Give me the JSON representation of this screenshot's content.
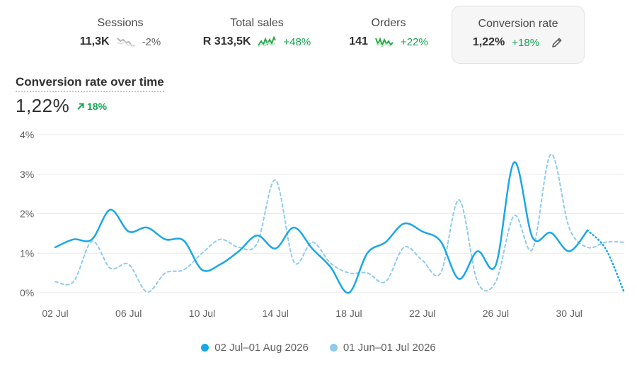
{
  "metrics": [
    {
      "label": "Sessions",
      "value": "11,3K",
      "change": "-2%",
      "trend": "down",
      "spark_color": "#b5b5b5",
      "active": false
    },
    {
      "label": "Total sales",
      "value": "R 313,5K",
      "change": "+48%",
      "trend": "up",
      "spark_color": "#29a847",
      "active": false
    },
    {
      "label": "Orders",
      "value": "141",
      "change": "+22%",
      "trend": "up",
      "spark_color": "#29a847",
      "active": false
    },
    {
      "label": "Conversion rate",
      "value": "1,22%",
      "change": "+18%",
      "trend": "up",
      "spark_color": "#29a847",
      "active": true,
      "icon": "pencil-icon"
    }
  ],
  "chart_header": {
    "title": "Conversion rate over time",
    "value": "1,22%",
    "change": "18%",
    "change_icon": "arrow-up-right-icon"
  },
  "colors": {
    "current": "#1aa7e8",
    "previous": "#8ecbee",
    "positive": "#14a352",
    "grid": "#e8e8e8"
  },
  "chart_data": {
    "type": "line",
    "title": "Conversion rate over time",
    "ylabel": "",
    "xlabel": "",
    "ylim": [
      0,
      4
    ],
    "yticks": [
      "0%",
      "1%",
      "2%",
      "3%",
      "4%"
    ],
    "xticks": [
      "02 Jul",
      "06 Jul",
      "10 Jul",
      "14 Jul",
      "18 Jul",
      "22 Jul",
      "26 Jul",
      "30 Jul"
    ],
    "x_count": 32,
    "grid": true,
    "legend_position": "bottom",
    "series": [
      {
        "name": "02 Jul–01 Aug 2026",
        "style": "solid",
        "values": [
          1.15,
          1.35,
          1.35,
          2.1,
          1.55,
          1.65,
          1.35,
          1.32,
          0.58,
          0.72,
          1.05,
          1.45,
          1.12,
          1.65,
          1.12,
          0.65,
          0.0,
          1.0,
          1.28,
          1.75,
          1.55,
          1.3,
          0.35,
          1.05,
          0.7,
          3.3,
          1.4,
          1.52,
          1.05,
          1.58,
          null,
          null
        ],
        "tail_dotted": [
          [
            29,
            1.58
          ],
          [
            30,
            1.1
          ],
          [
            31,
            0.0
          ]
        ]
      },
      {
        "name": "01 Jun–01 Jul 2026",
        "style": "dashed",
        "values": [
          0.28,
          0.28,
          1.3,
          0.62,
          0.72,
          0.02,
          0.5,
          0.58,
          1.0,
          1.35,
          1.15,
          1.25,
          2.85,
          0.78,
          1.28,
          0.75,
          0.5,
          0.5,
          0.28,
          1.15,
          0.82,
          0.5,
          2.35,
          0.28,
          0.28,
          1.95,
          1.1,
          3.5,
          1.65,
          1.15,
          1.28,
          1.28
        ]
      }
    ]
  }
}
